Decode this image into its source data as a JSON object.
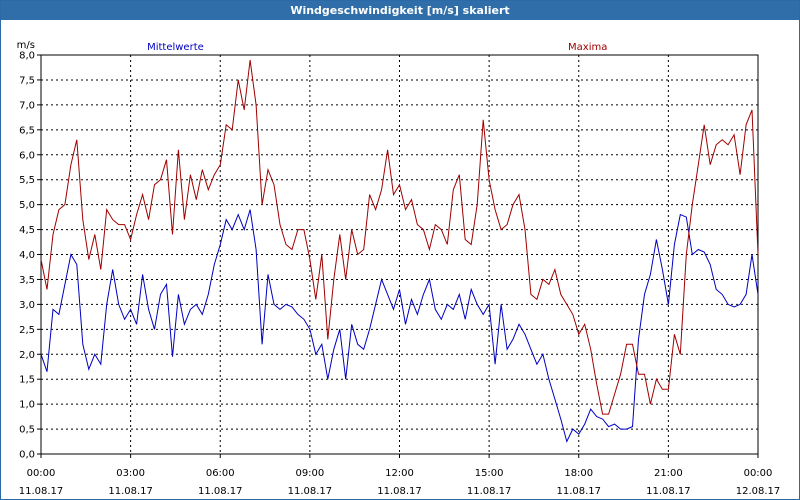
{
  "window": {
    "title": "Windgeschwindigkeit [m/s] skaliert"
  },
  "colors": {
    "titlebar": "#2f6ea8",
    "mean": "#0000c0",
    "max": "#a00000",
    "grid": "#000000"
  },
  "chart_data": {
    "type": "line",
    "title": "Windgeschwindigkeit [m/s] skaliert",
    "ylabel": "m/s",
    "xlabel": "",
    "ylim": [
      0,
      8
    ],
    "y_ticks": [
      "0,0",
      "0,5",
      "1,0",
      "1,5",
      "2,0",
      "2,5",
      "3,0",
      "3,5",
      "4,0",
      "4,5",
      "5,0",
      "5,5",
      "6,0",
      "6,5",
      "7,0",
      "7,5",
      "8,0"
    ],
    "x_range_hours": [
      0,
      24
    ],
    "x_ticks": [
      {
        "time": "00:00",
        "date": "11.08.17"
      },
      {
        "time": "03:00",
        "date": "11.08.17"
      },
      {
        "time": "06:00",
        "date": "11.08.17"
      },
      {
        "time": "09:00",
        "date": "11.08.17"
      },
      {
        "time": "12:00",
        "date": "11.08.17"
      },
      {
        "time": "15:00",
        "date": "11.08.17"
      },
      {
        "time": "18:00",
        "date": "11.08.17"
      },
      {
        "time": "21:00",
        "date": "11.08.17"
      },
      {
        "time": "00:00",
        "date": "12.08.17"
      }
    ],
    "grid": true,
    "legend": [
      {
        "name": "Mittelwerte",
        "position": "top-left"
      },
      {
        "name": "Maxima",
        "position": "top-right"
      }
    ],
    "series": [
      {
        "name": "Mittelwerte",
        "color": "#0000c0",
        "points": [
          [
            0,
            2
          ],
          [
            0.2,
            1.65
          ],
          [
            0.4,
            2.9
          ],
          [
            0.6,
            2.8
          ],
          [
            0.8,
            3.4
          ],
          [
            1.0,
            4.0
          ],
          [
            1.2,
            3.8
          ],
          [
            1.4,
            2.2
          ],
          [
            1.6,
            1.7
          ],
          [
            1.8,
            2.0
          ],
          [
            2.0,
            1.8
          ],
          [
            2.2,
            3.0
          ],
          [
            2.4,
            3.7
          ],
          [
            2.6,
            3.0
          ],
          [
            2.8,
            2.7
          ],
          [
            3.0,
            2.9
          ],
          [
            3.2,
            2.6
          ],
          [
            3.4,
            3.6
          ],
          [
            3.6,
            2.9
          ],
          [
            3.8,
            2.5
          ],
          [
            4.0,
            3.2
          ],
          [
            4.2,
            3.4
          ],
          [
            4.4,
            1.95
          ],
          [
            4.6,
            3.2
          ],
          [
            4.8,
            2.6
          ],
          [
            5.0,
            2.9
          ],
          [
            5.2,
            3.0
          ],
          [
            5.4,
            2.8
          ],
          [
            5.6,
            3.2
          ],
          [
            5.8,
            3.8
          ],
          [
            6.0,
            4.2
          ],
          [
            6.2,
            4.7
          ],
          [
            6.4,
            4.5
          ],
          [
            6.6,
            4.8
          ],
          [
            6.8,
            4.5
          ],
          [
            7.0,
            4.9
          ],
          [
            7.2,
            4.1
          ],
          [
            7.4,
            2.2
          ],
          [
            7.6,
            3.6
          ],
          [
            7.8,
            3.0
          ],
          [
            8.0,
            2.9
          ],
          [
            8.2,
            3.0
          ],
          [
            8.4,
            2.95
          ],
          [
            8.6,
            2.8
          ],
          [
            8.8,
            2.7
          ],
          [
            9.0,
            2.5
          ],
          [
            9.2,
            2.0
          ],
          [
            9.4,
            2.2
          ],
          [
            9.6,
            1.5
          ],
          [
            9.8,
            2.1
          ],
          [
            10.0,
            2.5
          ],
          [
            10.2,
            1.5
          ],
          [
            10.4,
            2.6
          ],
          [
            10.6,
            2.2
          ],
          [
            10.8,
            2.1
          ],
          [
            11.0,
            2.5
          ],
          [
            11.2,
            3.0
          ],
          [
            11.4,
            3.5
          ],
          [
            11.6,
            3.2
          ],
          [
            11.8,
            2.9
          ],
          [
            12.0,
            3.3
          ],
          [
            12.2,
            2.6
          ],
          [
            12.4,
            3.1
          ],
          [
            12.6,
            2.8
          ],
          [
            12.8,
            3.2
          ],
          [
            13.0,
            3.5
          ],
          [
            13.2,
            2.9
          ],
          [
            13.4,
            2.7
          ],
          [
            13.6,
            3.0
          ],
          [
            13.8,
            2.9
          ],
          [
            14.0,
            3.2
          ],
          [
            14.2,
            2.7
          ],
          [
            14.4,
            3.3
          ],
          [
            14.6,
            3.0
          ],
          [
            14.8,
            2.8
          ],
          [
            15.0,
            3.0
          ],
          [
            15.2,
            1.8
          ],
          [
            15.4,
            3.0
          ],
          [
            15.6,
            2.1
          ],
          [
            15.8,
            2.3
          ],
          [
            16.0,
            2.6
          ],
          [
            16.2,
            2.4
          ],
          [
            16.4,
            2.1
          ],
          [
            16.6,
            1.8
          ],
          [
            16.8,
            2.0
          ],
          [
            17.0,
            1.5
          ],
          [
            17.2,
            1.1
          ],
          [
            17.4,
            0.7
          ],
          [
            17.6,
            0.25
          ],
          [
            17.8,
            0.5
          ],
          [
            18.0,
            0.4
          ],
          [
            18.2,
            0.6
          ],
          [
            18.4,
            0.9
          ],
          [
            18.6,
            0.75
          ],
          [
            18.8,
            0.7
          ],
          [
            19.0,
            0.55
          ],
          [
            19.2,
            0.6
          ],
          [
            19.4,
            0.5
          ],
          [
            19.6,
            0.5
          ],
          [
            19.8,
            0.55
          ],
          [
            20.0,
            2.3
          ],
          [
            20.2,
            3.2
          ],
          [
            20.4,
            3.6
          ],
          [
            20.6,
            4.3
          ],
          [
            20.8,
            3.7
          ],
          [
            21.0,
            3.0
          ],
          [
            21.2,
            4.2
          ],
          [
            21.4,
            4.8
          ],
          [
            21.6,
            4.75
          ],
          [
            21.8,
            4.0
          ],
          [
            22.0,
            4.1
          ],
          [
            22.2,
            4.05
          ],
          [
            22.4,
            3.8
          ],
          [
            22.6,
            3.3
          ],
          [
            22.8,
            3.2
          ],
          [
            23.0,
            3.0
          ],
          [
            23.2,
            2.95
          ],
          [
            23.4,
            3.0
          ],
          [
            23.6,
            3.2
          ],
          [
            23.8,
            4.0
          ],
          [
            24.0,
            3.2
          ]
        ]
      },
      {
        "name": "Maxima",
        "color": "#a00000",
        "points": [
          [
            0,
            3.9
          ],
          [
            0.2,
            3.3
          ],
          [
            0.4,
            4.4
          ],
          [
            0.6,
            4.9
          ],
          [
            0.8,
            5.0
          ],
          [
            1.0,
            5.8
          ],
          [
            1.2,
            6.3
          ],
          [
            1.4,
            4.7
          ],
          [
            1.6,
            3.9
          ],
          [
            1.8,
            4.4
          ],
          [
            2.0,
            3.7
          ],
          [
            2.2,
            4.9
          ],
          [
            2.4,
            4.7
          ],
          [
            2.6,
            4.6
          ],
          [
            2.8,
            4.6
          ],
          [
            3.0,
            4.3
          ],
          [
            3.2,
            4.8
          ],
          [
            3.4,
            5.2
          ],
          [
            3.6,
            4.7
          ],
          [
            3.8,
            5.4
          ],
          [
            4.0,
            5.5
          ],
          [
            4.2,
            5.9
          ],
          [
            4.4,
            4.4
          ],
          [
            4.6,
            6.1
          ],
          [
            4.8,
            4.7
          ],
          [
            5.0,
            5.6
          ],
          [
            5.2,
            5.1
          ],
          [
            5.4,
            5.7
          ],
          [
            5.6,
            5.3
          ],
          [
            5.8,
            5.6
          ],
          [
            6.0,
            5.8
          ],
          [
            6.2,
            6.6
          ],
          [
            6.4,
            6.5
          ],
          [
            6.6,
            7.5
          ],
          [
            6.8,
            6.9
          ],
          [
            7.0,
            7.9
          ],
          [
            7.2,
            7.0
          ],
          [
            7.4,
            5.0
          ],
          [
            7.6,
            5.7
          ],
          [
            7.8,
            5.4
          ],
          [
            8.0,
            4.6
          ],
          [
            8.2,
            4.2
          ],
          [
            8.4,
            4.1
          ],
          [
            8.6,
            4.5
          ],
          [
            8.8,
            4.5
          ],
          [
            9.0,
            3.9
          ],
          [
            9.2,
            3.1
          ],
          [
            9.4,
            4.0
          ],
          [
            9.6,
            2.3
          ],
          [
            9.8,
            3.5
          ],
          [
            10.0,
            4.4
          ],
          [
            10.2,
            3.5
          ],
          [
            10.4,
            4.5
          ],
          [
            10.6,
            4.0
          ],
          [
            10.8,
            4.1
          ],
          [
            11.0,
            5.2
          ],
          [
            11.2,
            4.9
          ],
          [
            11.4,
            5.3
          ],
          [
            11.6,
            6.1
          ],
          [
            11.8,
            5.2
          ],
          [
            12.0,
            5.4
          ],
          [
            12.2,
            4.9
          ],
          [
            12.4,
            5.1
          ],
          [
            12.6,
            4.6
          ],
          [
            12.8,
            4.5
          ],
          [
            13.0,
            4.1
          ],
          [
            13.2,
            4.6
          ],
          [
            13.4,
            4.5
          ],
          [
            13.6,
            4.2
          ],
          [
            13.8,
            5.3
          ],
          [
            14.0,
            5.6
          ],
          [
            14.2,
            4.3
          ],
          [
            14.4,
            4.2
          ],
          [
            14.6,
            5.0
          ],
          [
            14.8,
            6.7
          ],
          [
            15.0,
            5.5
          ],
          [
            15.2,
            4.9
          ],
          [
            15.4,
            4.5
          ],
          [
            15.6,
            4.6
          ],
          [
            15.8,
            5.0
          ],
          [
            16.0,
            5.2
          ],
          [
            16.2,
            4.5
          ],
          [
            16.4,
            3.2
          ],
          [
            16.6,
            3.1
          ],
          [
            16.8,
            3.5
          ],
          [
            17.0,
            3.4
          ],
          [
            17.2,
            3.7
          ],
          [
            17.4,
            3.2
          ],
          [
            17.6,
            3.0
          ],
          [
            17.8,
            2.8
          ],
          [
            18.0,
            2.4
          ],
          [
            18.2,
            2.6
          ],
          [
            18.4,
            2.1
          ],
          [
            18.6,
            1.4
          ],
          [
            18.8,
            0.8
          ],
          [
            19.0,
            0.8
          ],
          [
            19.2,
            1.2
          ],
          [
            19.4,
            1.6
          ],
          [
            19.6,
            2.2
          ],
          [
            19.8,
            2.2
          ],
          [
            20.0,
            1.6
          ],
          [
            20.2,
            1.6
          ],
          [
            20.4,
            1.0
          ],
          [
            20.6,
            1.5
          ],
          [
            20.8,
            1.3
          ],
          [
            21.0,
            1.3
          ],
          [
            21.2,
            2.4
          ],
          [
            21.4,
            2.0
          ],
          [
            21.6,
            4.0
          ],
          [
            21.8,
            5.0
          ],
          [
            22.0,
            5.8
          ],
          [
            22.2,
            6.6
          ],
          [
            22.4,
            5.8
          ],
          [
            22.6,
            6.2
          ],
          [
            22.8,
            6.3
          ],
          [
            23.0,
            6.2
          ],
          [
            23.2,
            6.4
          ],
          [
            23.4,
            5.6
          ],
          [
            23.6,
            6.6
          ],
          [
            23.8,
            6.9
          ],
          [
            24.0,
            4.0
          ]
        ]
      }
    ]
  }
}
